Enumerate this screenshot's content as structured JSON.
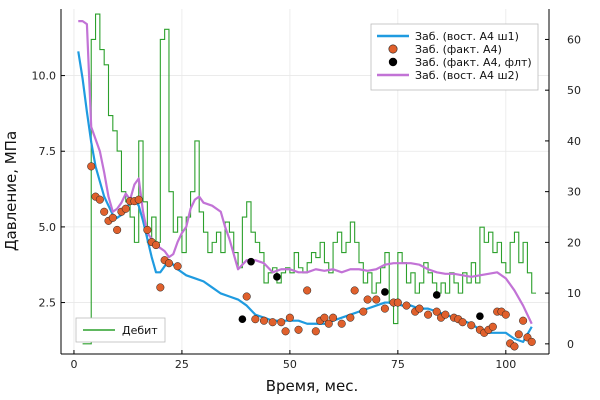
{
  "chart_data": {
    "type": "line",
    "xlabel": "Время, мес.",
    "ylabel": "Давление, МПа",
    "xlim": [
      -3,
      110
    ],
    "ylim": [
      0.8,
      12.2
    ],
    "y2lim": [
      -2,
      66
    ],
    "grid": true,
    "x_ticks": [
      0,
      25,
      50,
      75,
      100
    ],
    "y_ticks": [
      2.5,
      5.0,
      7.5,
      10.0
    ],
    "y_tick_labels": [
      "2.5",
      "5.0",
      "7.5",
      "10.0"
    ],
    "y2_ticks": [
      0,
      10,
      20,
      30,
      40,
      50,
      60
    ],
    "legend_main_position": "top-right",
    "legend_secondary_position": "bottom-left",
    "colors": {
      "vost1": "#1f9be0",
      "fact": "#e0602c",
      "fact_flt": "#000000",
      "vost2": "#c273d6",
      "debit": "#2ca02c"
    },
    "series": [
      {
        "name": "Заб. (вост. А4 ш1)",
        "kind": "line",
        "color_key": "vost1",
        "x": [
          1,
          2,
          3,
          4,
          5,
          6,
          7,
          8,
          9,
          10,
          11,
          12,
          13,
          14,
          15,
          16,
          17,
          18,
          19,
          20,
          22,
          24,
          26,
          28,
          30,
          32,
          34,
          36,
          38,
          40,
          42,
          44,
          46,
          48,
          50,
          52,
          54,
          56,
          58,
          60,
          62,
          64,
          66,
          68,
          70,
          72,
          74,
          76,
          78,
          80,
          82,
          84,
          86,
          88,
          90,
          92,
          94,
          96,
          98,
          100,
          102,
          104,
          106
        ],
        "y": [
          10.8,
          9.9,
          8.8,
          7.8,
          7.0,
          6.5,
          6.0,
          5.7,
          5.4,
          5.3,
          5.4,
          5.6,
          5.8,
          5.9,
          5.7,
          5.2,
          4.6,
          4.0,
          3.5,
          3.5,
          3.9,
          3.6,
          3.4,
          3.3,
          3.2,
          3.0,
          2.8,
          2.7,
          2.6,
          2.4,
          2.1,
          2.0,
          1.9,
          1.9,
          1.9,
          1.9,
          1.8,
          1.8,
          1.8,
          1.9,
          2.0,
          2.1,
          2.2,
          2.3,
          2.4,
          2.5,
          2.5,
          2.4,
          2.4,
          2.3,
          2.3,
          2.2,
          2.1,
          2.0,
          1.9,
          1.8,
          1.6,
          1.5,
          1.5,
          1.5,
          1.3,
          1.2,
          1.7
        ]
      },
      {
        "name": "Заб. (факт. А4)",
        "kind": "scatter",
        "color_key": "fact",
        "x": [
          4,
          5,
          6,
          7,
          8,
          9,
          10,
          11,
          12,
          13,
          14,
          15,
          17,
          18,
          19,
          20,
          21,
          22,
          24,
          40,
          42,
          44,
          46,
          48,
          49,
          50,
          52,
          54,
          56,
          57,
          58,
          59,
          60,
          62,
          64,
          65,
          67,
          68,
          70,
          72,
          74,
          75,
          77,
          79,
          80,
          82,
          84,
          85,
          86,
          88,
          89,
          90,
          92,
          94,
          95,
          96,
          97,
          98,
          99,
          100,
          101,
          102,
          103,
          104,
          105,
          106
        ],
        "y": [
          7.0,
          6.0,
          5.9,
          5.5,
          5.2,
          5.3,
          4.9,
          5.5,
          5.6,
          5.85,
          5.85,
          5.9,
          4.9,
          4.5,
          4.4,
          3.0,
          3.9,
          3.8,
          3.7,
          2.7,
          1.95,
          1.9,
          1.85,
          1.85,
          1.55,
          2.0,
          1.6,
          2.9,
          1.55,
          1.9,
          2.0,
          1.8,
          2.0,
          1.8,
          2.0,
          2.9,
          2.2,
          2.6,
          2.6,
          2.3,
          2.5,
          2.5,
          2.4,
          2.2,
          2.3,
          2.1,
          2.2,
          2.0,
          2.1,
          2.0,
          1.95,
          1.85,
          1.75,
          1.6,
          1.5,
          1.6,
          1.7,
          2.2,
          2.2,
          2.1,
          1.15,
          1.05,
          1.45,
          1.9,
          1.35,
          1.2
        ]
      },
      {
        "name": "Заб. (факт. А4, флт)",
        "kind": "scatter",
        "color_key": "fact_flt",
        "x": [
          39,
          41,
          47,
          72,
          84,
          94
        ],
        "y": [
          1.95,
          3.85,
          3.35,
          2.85,
          2.75,
          2.05
        ]
      },
      {
        "name": "Заб. (вост. А4 ш2)",
        "kind": "line",
        "color_key": "vost2",
        "x": [
          1,
          2,
          3,
          4,
          5,
          6,
          7,
          8,
          9,
          10,
          11,
          12,
          13,
          14,
          15,
          16,
          17,
          18,
          19,
          20,
          21,
          22,
          23,
          24,
          25,
          26,
          27,
          28,
          29,
          30,
          32,
          34,
          35,
          36,
          38,
          40,
          42,
          44,
          46,
          48,
          50,
          52,
          54,
          56,
          58,
          60,
          62,
          64,
          66,
          68,
          70,
          72,
          74,
          76,
          78,
          80,
          82,
          84,
          86,
          88,
          90,
          92,
          94,
          96,
          98,
          100,
          102,
          104,
          106
        ],
        "y": [
          11.8,
          11.8,
          11.7,
          8.3,
          7.9,
          7.5,
          6.8,
          6.0,
          5.5,
          5.6,
          5.8,
          6.1,
          5.9,
          6.4,
          6.6,
          5.5,
          4.8,
          4.6,
          4.4,
          4.3,
          4.2,
          4.0,
          4.1,
          4.5,
          4.8,
          5.0,
          5.6,
          5.9,
          6.0,
          5.8,
          5.7,
          5.5,
          5.0,
          4.6,
          3.6,
          3.9,
          3.9,
          3.8,
          3.5,
          3.6,
          3.6,
          3.5,
          3.5,
          3.6,
          3.55,
          3.6,
          3.5,
          3.6,
          3.6,
          3.55,
          3.6,
          3.75,
          3.8,
          3.8,
          3.8,
          3.75,
          3.6,
          3.5,
          3.45,
          3.45,
          3.4,
          3.35,
          3.4,
          3.45,
          3.5,
          3.3,
          2.9,
          2.4,
          1.8
        ]
      },
      {
        "name": "Дебит",
        "kind": "step",
        "axis": "y2",
        "color_key": "debit",
        "x": [
          2,
          4,
          5,
          6,
          7,
          8,
          9,
          10,
          11,
          12,
          13,
          14,
          15,
          16,
          17,
          18,
          19,
          20,
          21,
          22,
          23,
          24,
          25,
          26,
          27,
          28,
          29,
          30,
          31,
          32,
          33,
          34,
          35,
          36,
          37,
          38,
          39,
          40,
          41,
          42,
          43,
          44,
          45,
          46,
          47,
          48,
          49,
          50,
          51,
          52,
          53,
          54,
          55,
          56,
          57,
          58,
          59,
          60,
          61,
          62,
          63,
          64,
          65,
          66,
          67,
          68,
          69,
          70,
          71,
          72,
          73,
          74,
          75,
          76,
          77,
          78,
          79,
          80,
          81,
          82,
          83,
          84,
          85,
          86,
          87,
          88,
          89,
          90,
          91,
          92,
          93,
          94,
          95,
          96,
          97,
          98,
          99,
          100,
          101,
          102,
          103,
          104,
          105,
          106
        ],
        "y": [
          0,
          60,
          65,
          58,
          55,
          45,
          42,
          38,
          30,
          28,
          25,
          20,
          40,
          28,
          20,
          25,
          20,
          60,
          62,
          30,
          22,
          25,
          18,
          25,
          30,
          40,
          26,
          22,
          18,
          20,
          22,
          18,
          24,
          22,
          18,
          15,
          25,
          28,
          22,
          20,
          18,
          12,
          14,
          15,
          12,
          14,
          15,
          14,
          18,
          15,
          14,
          16,
          18,
          17,
          20,
          16,
          14,
          20,
          22,
          18,
          20,
          24,
          20,
          16,
          12,
          14,
          10,
          12,
          15,
          18,
          8,
          4,
          18,
          16,
          12,
          14,
          10,
          12,
          16,
          14,
          12,
          10,
          12,
          10,
          14,
          12,
          10,
          14,
          12,
          16,
          12,
          23,
          20,
          22,
          18,
          20,
          16,
          14,
          20,
          22,
          16,
          20,
          14,
          10
        ]
      }
    ]
  }
}
